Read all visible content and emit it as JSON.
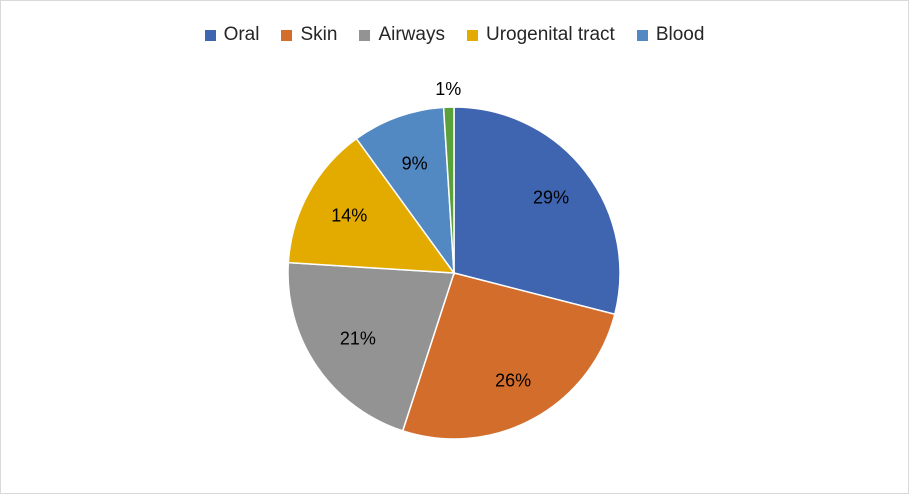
{
  "chart_data": {
    "type": "pie",
    "legend_position": "top",
    "slices": [
      {
        "label": "Oral",
        "value": 29,
        "display": "29%",
        "color": "#3f65b0",
        "in_legend": true
      },
      {
        "label": "Skin",
        "value": 26,
        "display": "26%",
        "color": "#d36d2c",
        "in_legend": true
      },
      {
        "label": "Airways",
        "value": 21,
        "display": "21%",
        "color": "#939393",
        "in_legend": true
      },
      {
        "label": "Urogenital tract",
        "value": 14,
        "display": "14%",
        "color": "#e3aa00",
        "in_legend": true
      },
      {
        "label": "Blood",
        "value": 9,
        "display": "9%",
        "color": "#5389c3",
        "in_legend": true
      },
      {
        "label": "",
        "value": 1,
        "display": "1%",
        "color": "#5aa03b",
        "in_legend": false
      }
    ]
  }
}
